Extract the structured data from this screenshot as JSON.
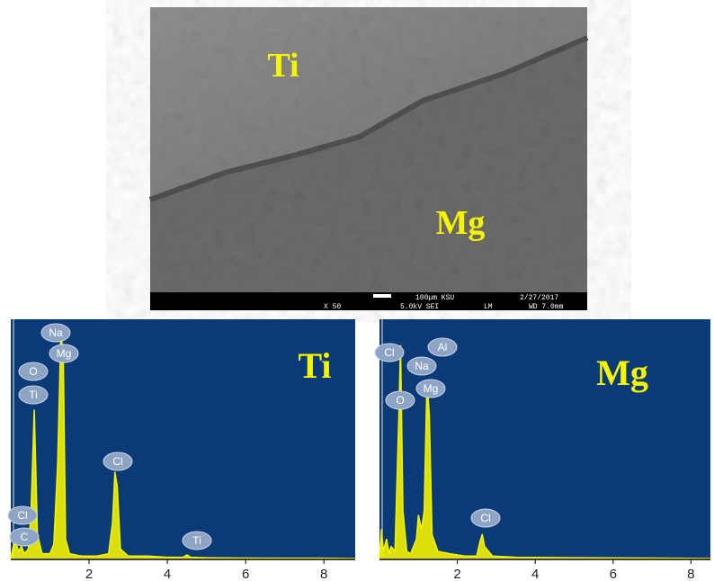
{
  "image": {
    "labels": [
      "Ti",
      "Mg"
    ],
    "info": [
      "100µm KSU",
      "2/27/2017",
      "X 50",
      "5.0kV SEI",
      "LM",
      "WD 7.0mm"
    ]
  },
  "chart_data": [
    {
      "type": "line",
      "label": "Ti",
      "color": "#f2f200",
      "background": "#0b3a78",
      "x": [
        0,
        0.1,
        0.2,
        0.27,
        0.35,
        0.45,
        0.52,
        0.6,
        0.68,
        0.8,
        1.0,
        1.1,
        1.2,
        1.28,
        1.34,
        1.4,
        1.5,
        1.8,
        2.2,
        2.5,
        2.6,
        2.66,
        2.72,
        2.8,
        3.0,
        3.5,
        4.0,
        4.4,
        4.5,
        4.6,
        5.0,
        6.0,
        7.0,
        8.0,
        8.8
      ],
      "values": [
        0,
        8,
        3,
        5,
        2,
        4,
        20,
        62,
        10,
        2,
        2,
        6,
        40,
        94,
        85,
        8,
        2,
        1,
        1,
        2,
        15,
        36,
        30,
        4,
        1,
        1,
        0.5,
        0.5,
        1.5,
        0.5,
        0.3,
        0.2,
        0.1,
        0.1,
        0
      ],
      "xlim": [
        0,
        8.8
      ],
      "ylim": [
        0,
        100
      ],
      "xticks": [
        2,
        4,
        6,
        8
      ],
      "annotations": [
        "Na",
        "Mg",
        "O",
        "Ti",
        "Cl",
        "Cl",
        "C",
        "Ti"
      ]
    },
    {
      "type": "line",
      "label": "Mg",
      "color": "#f2f200",
      "background": "#0b3a78",
      "x": [
        0,
        0.05,
        0.1,
        0.18,
        0.25,
        0.3,
        0.4,
        0.5,
        0.54,
        0.6,
        0.7,
        0.8,
        0.95,
        1.0,
        1.08,
        1.15,
        1.22,
        1.28,
        1.35,
        1.5,
        1.8,
        2.2,
        2.5,
        2.58,
        2.64,
        2.7,
        2.9,
        3.5,
        5,
        7,
        8.5
      ],
      "values": [
        0,
        12,
        3,
        8,
        2,
        5,
        3,
        60,
        89,
        20,
        3,
        2,
        8,
        18,
        12,
        20,
        74,
        60,
        10,
        3,
        2,
        1,
        1,
        7,
        10,
        5,
        1,
        0.5,
        0.3,
        0.2,
        0
      ],
      "xlim": [
        0,
        8.5
      ],
      "ylim": [
        0,
        100
      ],
      "xticks": [
        2,
        4,
        6,
        8
      ],
      "annotations": [
        "Cl",
        "Al",
        "Na",
        "O",
        "Mg",
        "Cl"
      ]
    }
  ]
}
